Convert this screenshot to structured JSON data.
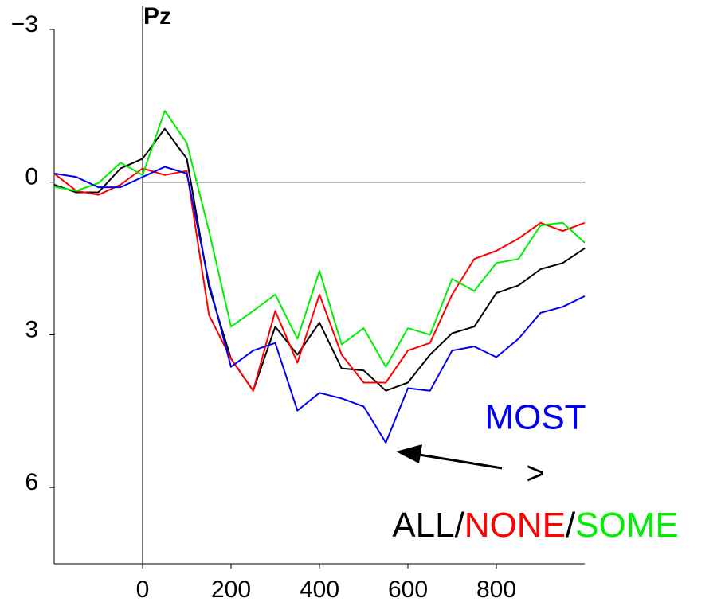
{
  "chart_data": {
    "type": "line",
    "title": "Pz",
    "x": [
      -200,
      -150,
      -100,
      -50,
      0,
      50,
      100,
      150,
      200,
      250,
      300,
      350,
      400,
      450,
      500,
      550,
      600,
      650,
      700,
      750,
      800,
      850,
      900,
      950,
      1000
    ],
    "series": [
      {
        "name": "ALL",
        "color": "#000000",
        "values": [
          0.05,
          0.2,
          0.2,
          -0.27,
          -0.46,
          -1.05,
          -0.46,
          2.06,
          3.47,
          4.1,
          2.84,
          3.39,
          2.76,
          3.66,
          3.7,
          4.1,
          3.94,
          3.39,
          2.97,
          2.84,
          2.18,
          2.03,
          1.71,
          1.59,
          1.3
        ]
      },
      {
        "name": "NONE",
        "color": "#ff0000",
        "values": [
          -0.17,
          0.17,
          0.25,
          0.05,
          -0.27,
          -0.14,
          -0.22,
          2.61,
          3.47,
          4.1,
          2.53,
          3.55,
          2.21,
          3.39,
          3.94,
          3.94,
          3.31,
          3.16,
          2.21,
          1.51,
          1.35,
          1.11,
          0.8,
          0.96,
          0.8
        ]
      },
      {
        "name": "SOME",
        "color": "#00ee00",
        "values": [
          0.09,
          0.17,
          0.02,
          -0.38,
          -0.14,
          -1.4,
          -0.77,
          0.96,
          2.84,
          2.53,
          2.21,
          3.08,
          1.74,
          3.19,
          2.87,
          3.63,
          2.87,
          3.0,
          1.9,
          2.14,
          1.59,
          1.51,
          0.85,
          0.8,
          1.19
        ]
      },
      {
        "name": "MOST",
        "color": "#0000ee",
        "values": [
          -0.17,
          -0.1,
          0.1,
          0.1,
          -0.1,
          -0.3,
          -0.17,
          1.98,
          3.63,
          3.31,
          3.16,
          4.49,
          4.14,
          4.25,
          4.41,
          5.12,
          4.05,
          4.1,
          3.31,
          3.23,
          3.44,
          3.08,
          2.57,
          2.45,
          2.24
        ]
      }
    ],
    "xlim": [
      -200,
      1000
    ],
    "ylim": [
      -3,
      7.5
    ],
    "invert_y": true,
    "xticks": [
      0,
      200,
      400,
      600,
      800
    ],
    "yticks": [
      {
        "value": -3,
        "label": "−3"
      },
      0,
      3,
      6
    ],
    "grid": false,
    "annotations": [
      ">",
      "/"
    ]
  }
}
